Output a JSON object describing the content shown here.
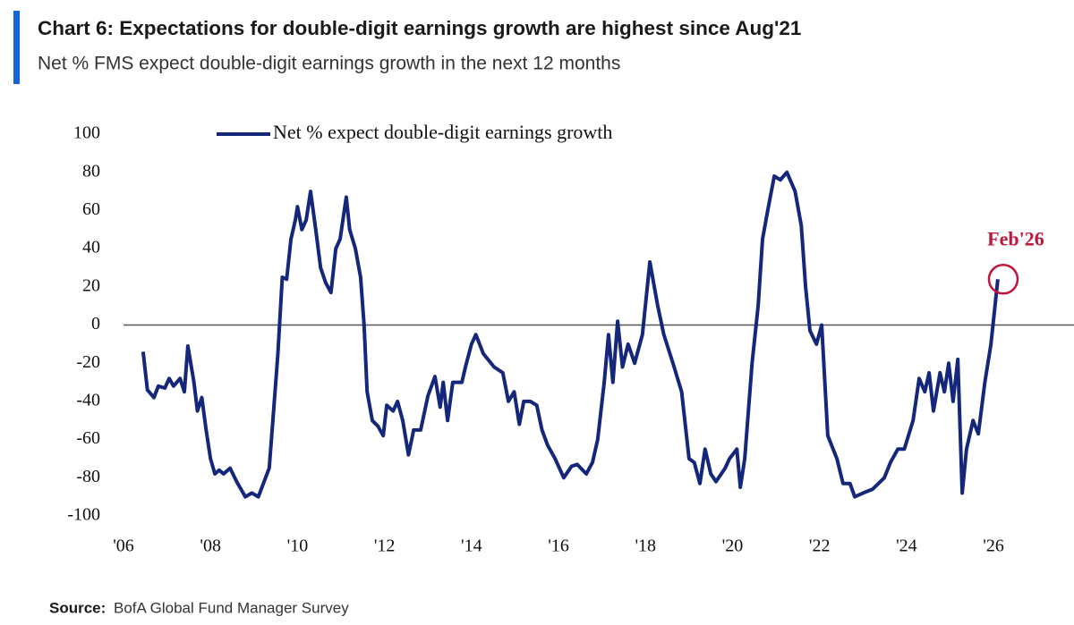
{
  "chart_data": {
    "type": "line",
    "title": "Chart 6: Expectations for double-digit earnings growth are highest since Aug'21",
    "subtitle": "Net % FMS expect double-digit earnings growth in the next 12 months",
    "source": {
      "label": "Source:",
      "text": "BofA Global Fund Manager Survey"
    },
    "annotation": "Feb'26",
    "legend": "upper left",
    "x": [
      2006.45,
      2006.55,
      2006.7,
      2006.8,
      2006.95,
      2007.05,
      2007.15,
      2007.3,
      2007.4,
      2007.48,
      2007.62,
      2007.7,
      2007.8,
      2007.9,
      2008.0,
      2008.1,
      2008.2,
      2008.3,
      2008.45,
      2008.6,
      2008.8,
      2008.95,
      2009.1,
      2009.2,
      2009.35,
      2009.45,
      2009.55,
      2009.65,
      2009.75,
      2009.85,
      2009.95,
      2010.0,
      2010.1,
      2010.2,
      2010.3,
      2010.42,
      2010.53,
      2010.65,
      2010.77,
      2010.88,
      2010.98,
      2011.12,
      2011.2,
      2011.33,
      2011.45,
      2011.53,
      2011.6,
      2011.72,
      2011.85,
      2011.97,
      2012.05,
      2012.2,
      2012.3,
      2012.42,
      2012.55,
      2012.67,
      2012.83,
      2013.0,
      2013.16,
      2013.28,
      2013.35,
      2013.45,
      2013.57,
      2013.78,
      2013.86,
      2014.0,
      2014.1,
      2014.27,
      2014.52,
      2014.72,
      2014.85,
      2014.98,
      2015.1,
      2015.2,
      2015.35,
      2015.5,
      2015.62,
      2015.75,
      2015.92,
      2016.12,
      2016.3,
      2016.43,
      2016.64,
      2016.78,
      2016.9,
      2017.05,
      2017.15,
      2017.25,
      2017.36,
      2017.47,
      2017.6,
      2017.75,
      2017.93,
      2018.1,
      2018.28,
      2018.42,
      2018.63,
      2018.83,
      2019.0,
      2019.12,
      2019.25,
      2019.37,
      2019.5,
      2019.62,
      2019.83,
      2019.93,
      2020.1,
      2020.18,
      2020.28,
      2020.45,
      2020.59,
      2020.69,
      2020.81,
      2020.96,
      2021.1,
      2021.25,
      2021.44,
      2021.58,
      2021.68,
      2021.78,
      2021.93,
      2022.05,
      2022.19,
      2022.4,
      2022.54,
      2022.7,
      2022.81,
      2023.0,
      2023.22,
      2023.49,
      2023.63,
      2023.8,
      2023.95,
      2024.15,
      2024.29,
      2024.42,
      2024.52,
      2024.62,
      2024.77,
      2024.87,
      2024.97,
      2025.07,
      2025.18,
      2025.28,
      2025.38,
      2025.53,
      2025.65,
      2025.8,
      2025.94,
      2026.1
    ],
    "series": [
      {
        "name": "Net % expect double-digit earnings growth",
        "color": "#15277a",
        "values": [
          -14,
          -34,
          -38,
          -32,
          -33,
          -28,
          -32,
          -28,
          -35,
          -11,
          -30,
          -45,
          -38,
          -55,
          -70,
          -78,
          -76,
          -78,
          -75,
          -82,
          -90,
          -88,
          -90,
          -84,
          -75,
          -45,
          -15,
          25,
          24,
          45,
          55,
          62,
          50,
          55,
          70,
          50,
          30,
          22,
          17,
          40,
          45,
          67,
          50,
          40,
          25,
          0,
          -35,
          -50,
          -53,
          -58,
          -42,
          -45,
          -40,
          -50,
          -68,
          -55,
          -55,
          -37,
          -27,
          -43,
          -30,
          -50,
          -30,
          -30,
          -22,
          -10,
          -5,
          -15,
          -22,
          -25,
          -40,
          -35,
          -52,
          -40,
          -40,
          -42,
          -55,
          -63,
          -70,
          -80,
          -74,
          -73,
          -78,
          -72,
          -60,
          -30,
          -5,
          -30,
          2,
          -22,
          -10,
          -20,
          -5,
          33,
          10,
          -5,
          -20,
          -35,
          -70,
          -72,
          -83,
          -65,
          -78,
          -82,
          -75,
          -70,
          -65,
          -85,
          -70,
          -20,
          10,
          45,
          60,
          78,
          76,
          80,
          70,
          52,
          20,
          -3,
          -10,
          0,
          -58,
          -70,
          -83,
          -83,
          -90,
          -88,
          -86,
          -80,
          -72,
          -65,
          -65,
          -50,
          -28,
          -35,
          -25,
          -45,
          -25,
          -35,
          -20,
          -40,
          -18,
          -88,
          -65,
          -50,
          -57,
          -30,
          -10,
          24
        ]
      }
    ],
    "xlim": [
      2006,
      2027.85
    ],
    "xticks": [
      {
        "value": 2006,
        "label": "'06"
      },
      {
        "value": 2008,
        "label": "'08"
      },
      {
        "value": 2010,
        "label": "'10"
      },
      {
        "value": 2012,
        "label": "'12"
      },
      {
        "value": 2014,
        "label": "'14"
      },
      {
        "value": 2016,
        "label": "'16"
      },
      {
        "value": 2018,
        "label": "'18"
      },
      {
        "value": 2020,
        "label": "'20"
      },
      {
        "value": 2022,
        "label": "'22"
      },
      {
        "value": 2024,
        "label": "'24"
      },
      {
        "value": 2026,
        "label": "'26"
      }
    ],
    "ylim": [
      -100,
      100
    ],
    "yticks": [
      100,
      80,
      60,
      40,
      20,
      0,
      -20,
      -40,
      -60,
      -80,
      -100
    ],
    "annotation_color": "#c0163c",
    "grid": false
  }
}
